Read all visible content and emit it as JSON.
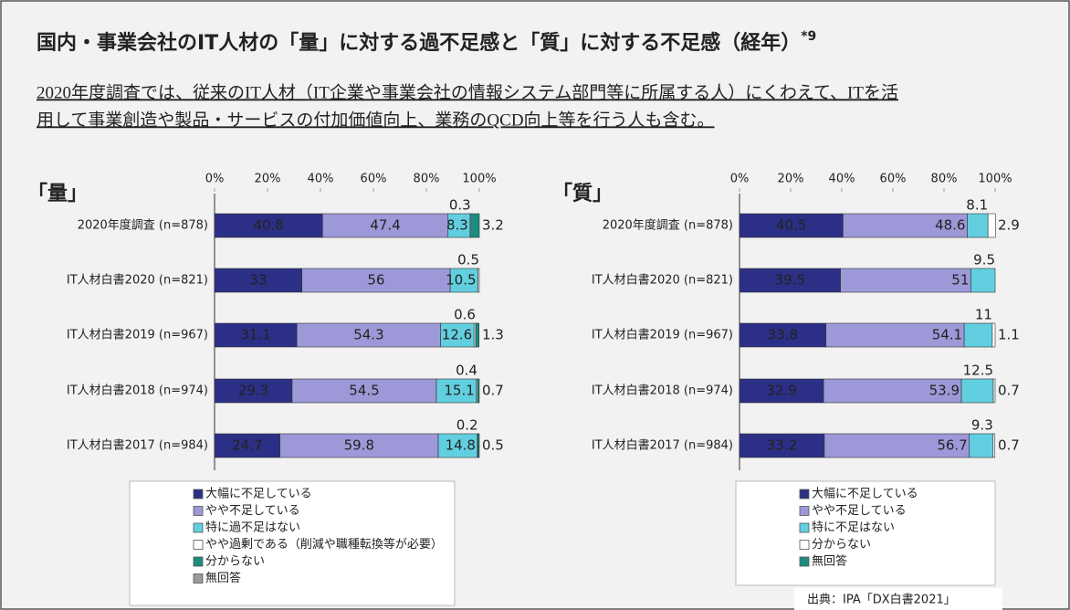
{
  "title": "国内・事業会社のIT人材の「量」に対する過不足感と「質」に対する不足感（経年）",
  "title_note": "*9",
  "subtitle": [
    "2020年度調査では、従来のIT人材（IT企業や事業会社の情報システム部門等に所属する人）にくわえて、ITを活",
    "用して事業創造や製品・サービスの付加価値向上、業務のQCD向上等を行う人も含む。"
  ],
  "source": "出典：IPA「DX白書2021」",
  "chart_data": [
    {
      "type": "stacked-bar-horizontal",
      "title": "「量」",
      "categories": [
        "2020年度調査 (n=878)",
        "IT人材白書2020 (n=821)",
        "IT人材白書2019 (n=967)",
        "IT人材白書2018 (n=974)",
        "IT人材白書2017 (n=984)"
      ],
      "xlim": [
        0,
        100
      ],
      "xticks": [
        {
          "value": 0,
          "label": "0%"
        },
        {
          "value": 20,
          "label": "20%"
        },
        {
          "value": 40,
          "label": "40%"
        },
        {
          "value": 60,
          "label": "60%"
        },
        {
          "value": 80,
          "label": "80%"
        },
        {
          "value": 100,
          "label": "100%"
        }
      ],
      "series": [
        {
          "name": "大幅に不足している",
          "color": "#2b2f85",
          "values": [
            40.8,
            33.0,
            31.1,
            29.3,
            24.7
          ]
        },
        {
          "name": "やや不足している",
          "color": "#9d99d8",
          "values": [
            47.4,
            56.0,
            54.3,
            54.5,
            59.8
          ]
        },
        {
          "name": "特に過不足はない",
          "color": "#62cfe0",
          "values": [
            8.3,
            10.5,
            12.6,
            15.1,
            14.8
          ]
        },
        {
          "name": "やや過剰である（削減や職種転換等が必要）",
          "color": "#ffffff",
          "values": [
            0.3,
            0.5,
            0.6,
            0.4,
            0.2
          ]
        },
        {
          "name": "分からない",
          "color": "#1a8c80",
          "values": [
            3.2,
            null,
            1.3,
            0.7,
            0.5
          ]
        },
        {
          "name": "無回答",
          "color": "#9a9a9a",
          "values": [
            null,
            null,
            null,
            null,
            null
          ]
        }
      ]
    },
    {
      "type": "stacked-bar-horizontal",
      "title": "「質」",
      "categories": [
        "2020年度調査 (n=878)",
        "IT人材白書2020 (n=821)",
        "IT人材白書2019 (n=967)",
        "IT人材白書2018 (n=974)",
        "IT人材白書2017 (n=984)"
      ],
      "xlim": [
        0,
        100
      ],
      "xticks": [
        {
          "value": 0,
          "label": "0%"
        },
        {
          "value": 20,
          "label": "20%"
        },
        {
          "value": 40,
          "label": "40%"
        },
        {
          "value": 60,
          "label": "60%"
        },
        {
          "value": 80,
          "label": "80%"
        },
        {
          "value": 100,
          "label": "100%"
        }
      ],
      "series": [
        {
          "name": "大幅に不足している",
          "color": "#2b2f85",
          "values": [
            40.5,
            39.5,
            33.8,
            32.9,
            33.2
          ]
        },
        {
          "name": "やや不足している",
          "color": "#9d99d8",
          "values": [
            48.6,
            51.0,
            54.1,
            53.9,
            56.7
          ]
        },
        {
          "name": "特に不足はない",
          "color": "#62cfe0",
          "values": [
            8.1,
            9.5,
            11.0,
            12.5,
            9.3
          ]
        },
        {
          "name": "分からない",
          "color": "#ffffff",
          "values": [
            2.9,
            null,
            1.1,
            0.7,
            0.7
          ]
        },
        {
          "name": "無回答",
          "color": "#1a8c80",
          "values": [
            null,
            null,
            null,
            null,
            null
          ]
        }
      ]
    }
  ]
}
